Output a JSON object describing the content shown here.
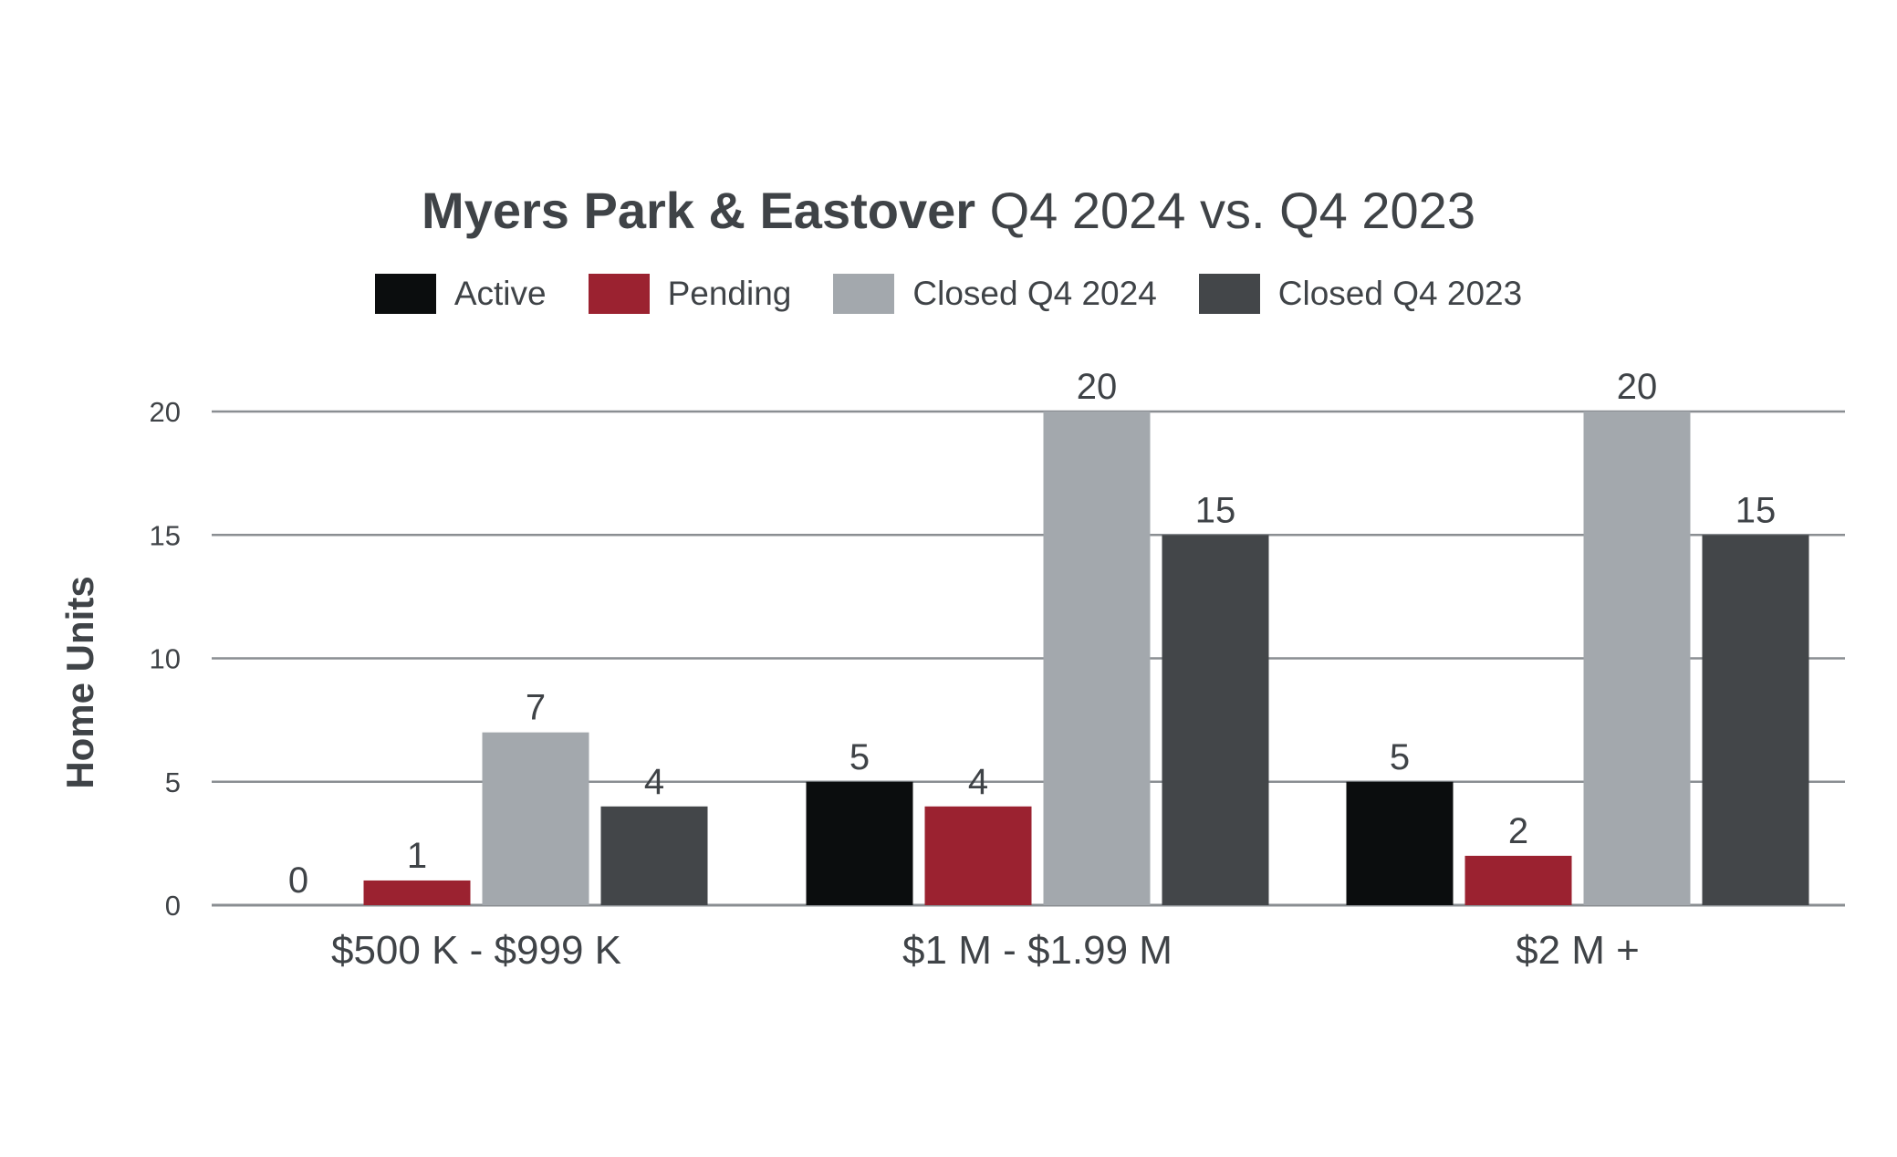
{
  "chart_data": {
    "type": "bar",
    "title_bold": "Myers Park & Eastover",
    "title_rest": "Q4 2024 vs. Q4 2023",
    "xlabel": "",
    "ylabel": "Home Units",
    "ylim": [
      0,
      20
    ],
    "yticks": [
      0,
      5,
      10,
      15,
      20
    ],
    "grid": true,
    "legend_position": "top-center",
    "categories": [
      "$500 K - $999 K",
      "$1 M - $1.99 M",
      "$2 M +"
    ],
    "series": [
      {
        "name": "Active",
        "color": "#0b0d0e",
        "values": [
          0,
          5,
          5
        ]
      },
      {
        "name": "Pending",
        "color": "#9b2230",
        "values": [
          1,
          4,
          2
        ]
      },
      {
        "name": "Closed Q4 2024",
        "color": "#a3a8ad",
        "values": [
          7,
          20,
          20
        ]
      },
      {
        "name": "Closed Q4 2023",
        "color": "#434649",
        "values": [
          4,
          15,
          15
        ]
      }
    ]
  }
}
